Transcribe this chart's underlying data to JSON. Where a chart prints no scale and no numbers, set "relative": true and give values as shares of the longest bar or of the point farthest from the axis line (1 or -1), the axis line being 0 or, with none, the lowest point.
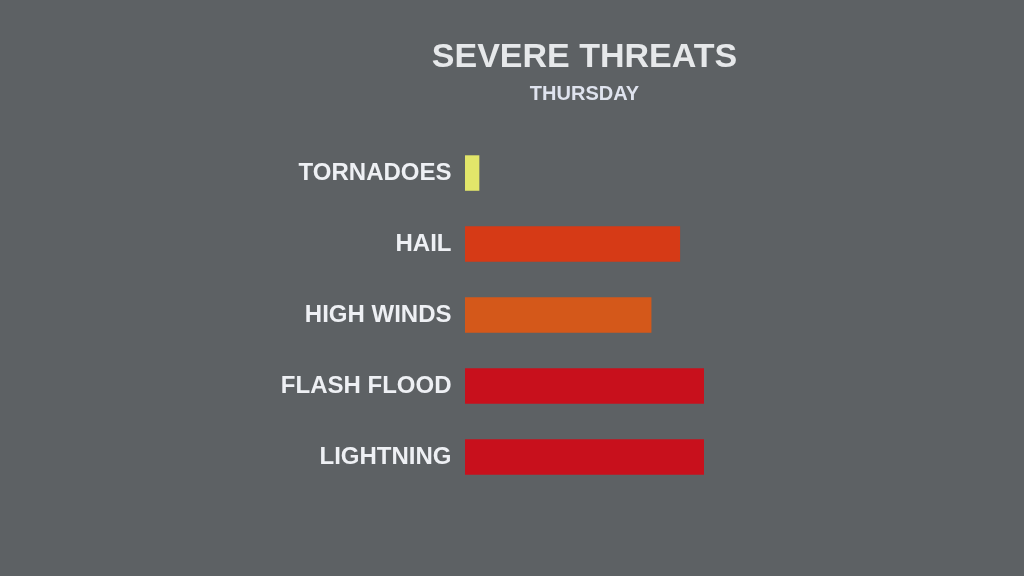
{
  "chart_data": {
    "type": "bar",
    "title": "SEVERE THREATS",
    "subtitle": "THURSDAY",
    "orientation": "horizontal",
    "relative": true,
    "categories": [
      "TORNADOES",
      "HAIL",
      "HIGH WINDS",
      "FLASH FLOOD",
      "LIGHTNING"
    ],
    "values": [
      0.06,
      0.9,
      0.78,
      1,
      1
    ],
    "colors": [
      "#e2e66a",
      "#d63a16",
      "#d4581a",
      "#c8101c",
      "#c8101c"
    ]
  }
}
